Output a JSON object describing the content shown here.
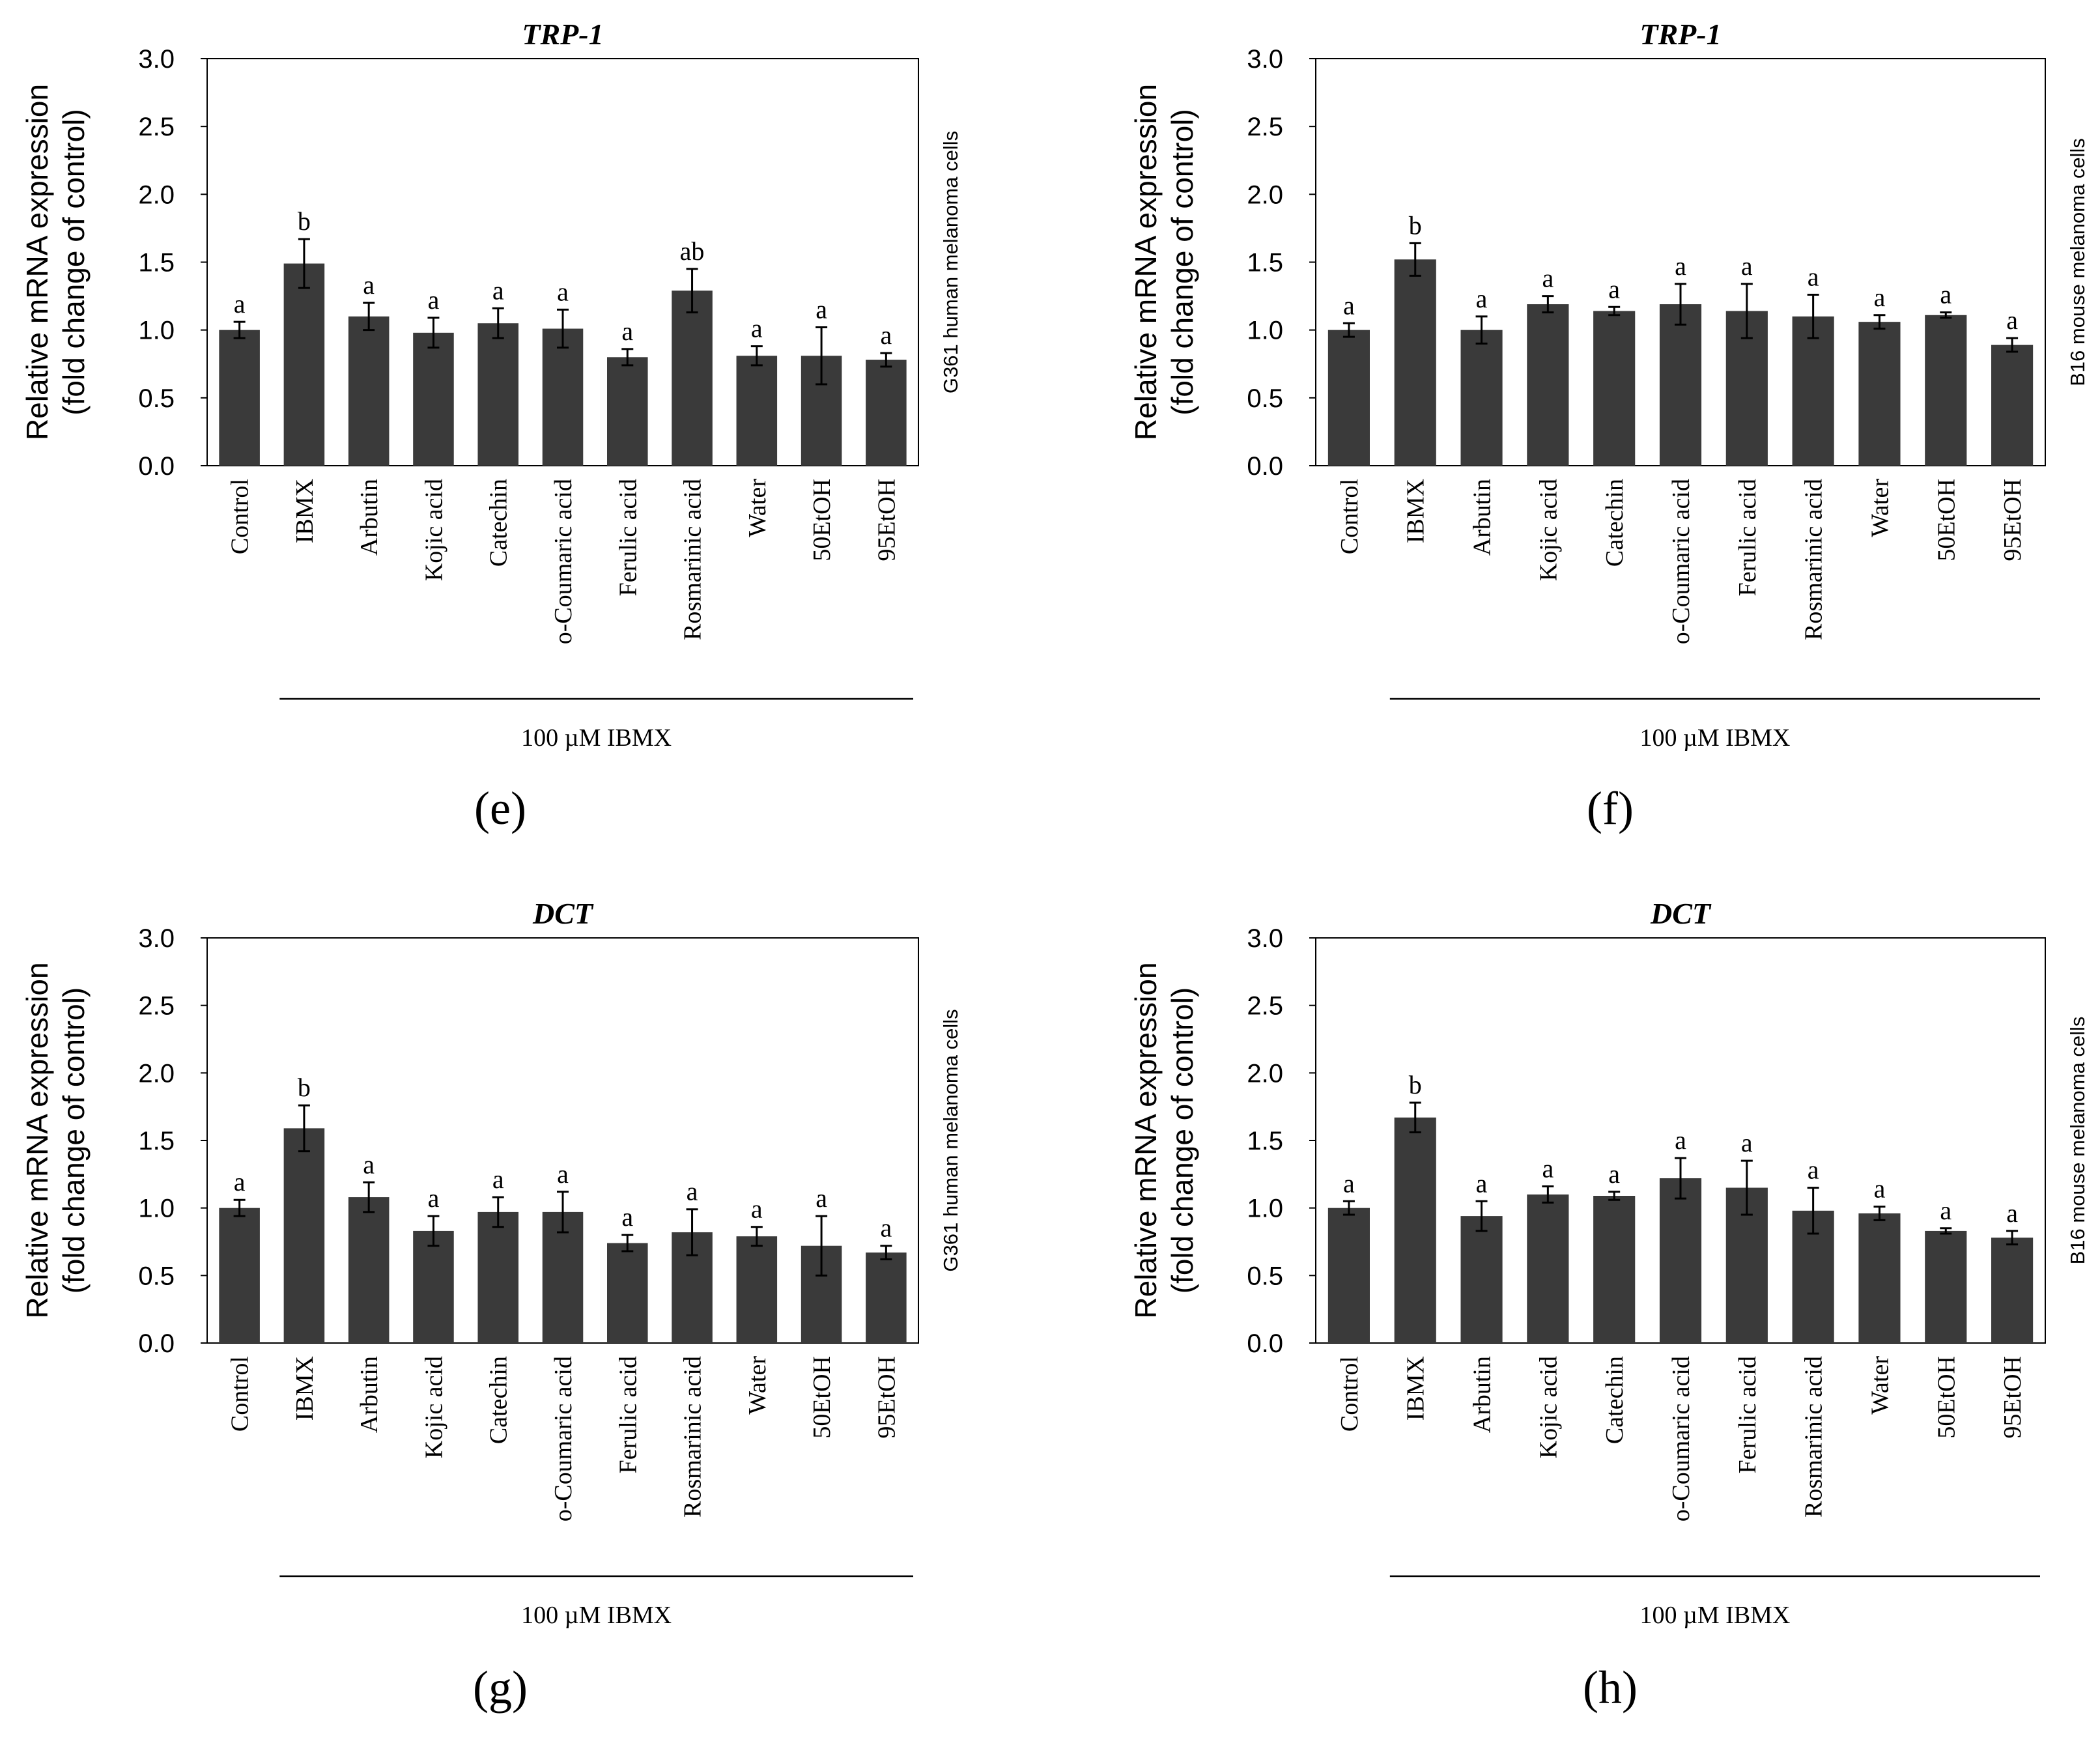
{
  "colors": {
    "bar": "#3a3a3a",
    "axis": "#000000",
    "background": "#ffffff"
  },
  "figure_panels": [
    "(e)",
    "(f)",
    "(g)",
    "(h)"
  ],
  "chart_data": [
    {
      "panel": "(e)",
      "type": "bar",
      "title": "TRP-1",
      "ylabel": [
        "Relative mRNA expression",
        "(fold change of control)"
      ],
      "side_label": "G361 human melanoma cells",
      "treatment_label": "100 µM IBMX",
      "ylim": [
        0,
        3.0
      ],
      "yticks": [
        "0.0",
        "0.5",
        "1.0",
        "1.5",
        "2.0",
        "2.5",
        "3.0"
      ],
      "categories": [
        "Control",
        "IBMX",
        "Arbutin",
        "Kojic acid",
        "Catechin",
        "o-Coumaric acid",
        "Ferulic acid",
        "Rosmarinic acid",
        "Water",
        "50EtOH",
        "95EtOH"
      ],
      "values": [
        1.0,
        1.49,
        1.1,
        0.98,
        1.05,
        1.01,
        0.8,
        1.29,
        0.81,
        0.81,
        0.78
      ],
      "errors": [
        0.06,
        0.18,
        0.1,
        0.11,
        0.11,
        0.14,
        0.06,
        0.16,
        0.07,
        0.21,
        0.05
      ],
      "letters": [
        "a",
        "b",
        "a",
        "a",
        "a",
        "a",
        "a",
        "ab",
        "a",
        "a",
        "a"
      ]
    },
    {
      "panel": "(f)",
      "type": "bar",
      "title": "TRP-1",
      "ylabel": [
        "Relative mRNA expression",
        "(fold change of control)"
      ],
      "side_label": "B16 mouse melanoma cells",
      "treatment_label": "100 µM IBMX",
      "ylim": [
        0,
        3.0
      ],
      "yticks": [
        "0.0",
        "0.5",
        "1.0",
        "1.5",
        "2.0",
        "2.5",
        "3.0"
      ],
      "categories": [
        "Control",
        "IBMX",
        "Arbutin",
        "Kojic acid",
        "Catechin",
        "o-Coumaric acid",
        "Ferulic acid",
        "Rosmarinic acid",
        "Water",
        "50EtOH",
        "95EtOH"
      ],
      "values": [
        1.0,
        1.52,
        1.0,
        1.19,
        1.14,
        1.19,
        1.14,
        1.1,
        1.06,
        1.11,
        0.89
      ],
      "errors": [
        0.05,
        0.12,
        0.1,
        0.06,
        0.03,
        0.15,
        0.2,
        0.16,
        0.05,
        0.02,
        0.05
      ],
      "letters": [
        "a",
        "b",
        "a",
        "a",
        "a",
        "a",
        "a",
        "a",
        "a",
        "a",
        "a"
      ]
    },
    {
      "panel": "(g)",
      "type": "bar",
      "title": "DCT",
      "ylabel": [
        "Relative mRNA expression",
        "(fold change of control)"
      ],
      "side_label": "G361 human melanoma cells",
      "treatment_label": "100 µM IBMX",
      "ylim": [
        0,
        3.0
      ],
      "yticks": [
        "0.0",
        "0.5",
        "1.0",
        "1.5",
        "2.0",
        "2.5",
        "3.0"
      ],
      "categories": [
        "Control",
        "IBMX",
        "Arbutin",
        "Kojic acid",
        "Catechin",
        "o-Coumaric acid",
        "Ferulic acid",
        "Rosmarinic acid",
        "Water",
        "50EtOH",
        "95EtOH"
      ],
      "values": [
        1.0,
        1.59,
        1.08,
        0.83,
        0.97,
        0.97,
        0.74,
        0.82,
        0.79,
        0.72,
        0.67
      ],
      "errors": [
        0.06,
        0.17,
        0.11,
        0.11,
        0.11,
        0.15,
        0.06,
        0.17,
        0.07,
        0.22,
        0.05
      ],
      "letters": [
        "a",
        "b",
        "a",
        "a",
        "a",
        "a",
        "a",
        "a",
        "a",
        "a",
        "a"
      ]
    },
    {
      "panel": "(h)",
      "type": "bar",
      "title": "DCT",
      "ylabel": [
        "Relative mRNA expression",
        "(fold change of control)"
      ],
      "side_label": "B16 mouse melanoma cells",
      "treatment_label": "100 µM IBMX",
      "ylim": [
        0,
        3.0
      ],
      "yticks": [
        "0.0",
        "0.5",
        "1.0",
        "1.5",
        "2.0",
        "2.5",
        "3.0"
      ],
      "categories": [
        "Control",
        "IBMX",
        "Arbutin",
        "Kojic acid",
        "Catechin",
        "o-Coumaric acid",
        "Ferulic acid",
        "Rosmarinic acid",
        "Water",
        "50EtOH",
        "95EtOH"
      ],
      "values": [
        1.0,
        1.67,
        0.94,
        1.1,
        1.09,
        1.22,
        1.15,
        0.98,
        0.96,
        0.83,
        0.78
      ],
      "errors": [
        0.05,
        0.11,
        0.11,
        0.06,
        0.03,
        0.15,
        0.2,
        0.17,
        0.05,
        0.02,
        0.05
      ],
      "letters": [
        "a",
        "b",
        "a",
        "a",
        "a",
        "a",
        "a",
        "a",
        "a",
        "a",
        "a"
      ]
    }
  ]
}
